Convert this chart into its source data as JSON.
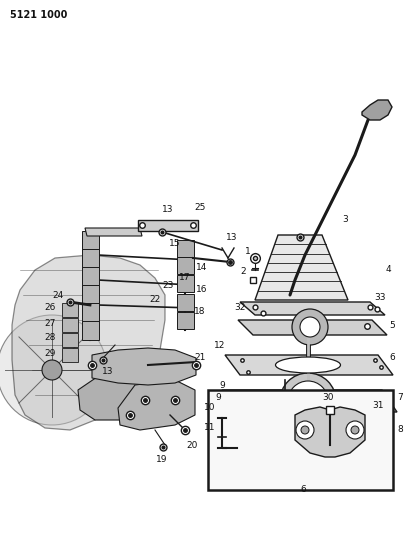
{
  "title": "5121 1000",
  "bg_color": "#ffffff",
  "fig_width": 4.08,
  "fig_height": 5.33,
  "dpi": 100,
  "line_color": "#1a1a1a",
  "text_color": "#111111",
  "light_gray": "#c8c8c8",
  "mid_gray": "#a0a0a0",
  "dark_gray": "#606060"
}
